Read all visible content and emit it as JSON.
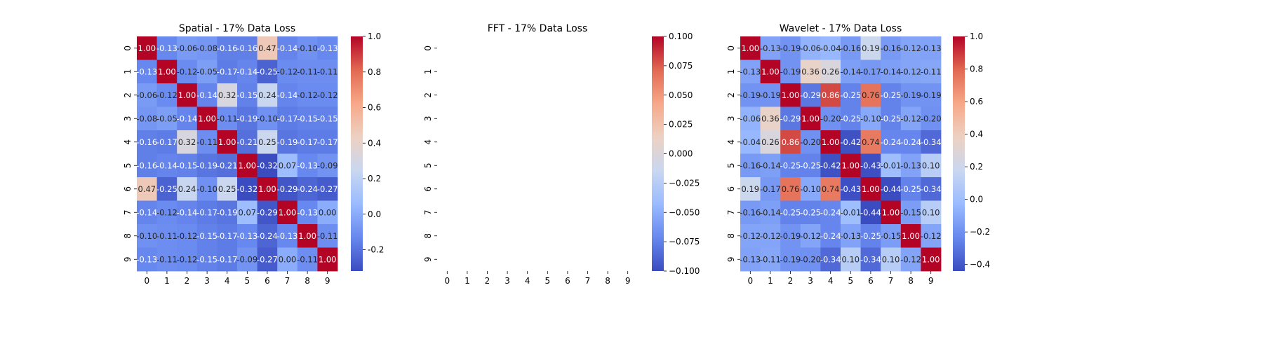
{
  "colormap": {
    "name": "coolwarm",
    "stops": [
      "#3b4cc0",
      "#6788ee",
      "#9abbff",
      "#c9d7f0",
      "#edd1c2",
      "#f7a889",
      "#e26952",
      "#b40426"
    ]
  },
  "chart_data": [
    {
      "type": "heatmap",
      "title": "Spatial - 17% Data Loss",
      "x_ticks": [
        "0",
        "1",
        "2",
        "3",
        "4",
        "5",
        "6",
        "7",
        "8",
        "9"
      ],
      "y_ticks": [
        "0",
        "1",
        "2",
        "3",
        "4",
        "5",
        "6",
        "7",
        "8",
        "9"
      ],
      "vmin": -0.32,
      "vmax": 1.0,
      "colorbar_ticks": [
        "-0.2",
        "0.0",
        "0.2",
        "0.4",
        "0.6",
        "0.8",
        "1.0"
      ],
      "annotated": true,
      "values": [
        [
          1.0,
          -0.13,
          -0.06,
          -0.08,
          -0.16,
          -0.16,
          0.47,
          -0.14,
          -0.1,
          -0.13
        ],
        [
          -0.13,
          1.0,
          -0.12,
          -0.05,
          -0.17,
          -0.14,
          -0.25,
          -0.12,
          -0.11,
          -0.11
        ],
        [
          -0.06,
          -0.12,
          1.0,
          -0.14,
          0.32,
          -0.15,
          0.24,
          -0.14,
          -0.12,
          -0.12
        ],
        [
          -0.08,
          -0.05,
          -0.14,
          1.0,
          -0.11,
          -0.19,
          -0.1,
          -0.17,
          -0.15,
          -0.15
        ],
        [
          -0.16,
          -0.17,
          0.32,
          -0.11,
          1.0,
          -0.21,
          0.25,
          -0.19,
          -0.17,
          -0.17
        ],
        [
          -0.16,
          -0.14,
          -0.15,
          -0.19,
          -0.21,
          1.0,
          -0.32,
          0.07,
          -0.13,
          -0.09
        ],
        [
          0.47,
          -0.25,
          0.24,
          -0.1,
          0.25,
          -0.32,
          1.0,
          -0.29,
          -0.24,
          -0.27
        ],
        [
          -0.14,
          -0.12,
          -0.14,
          -0.17,
          -0.19,
          0.07,
          -0.29,
          1.0,
          -0.13,
          -0.0
        ],
        [
          -0.1,
          -0.11,
          -0.12,
          -0.15,
          -0.17,
          -0.13,
          -0.24,
          -0.13,
          1.0,
          -0.11
        ],
        [
          -0.13,
          -0.11,
          -0.12,
          -0.15,
          -0.17,
          -0.09,
          -0.27,
          -0.0,
          -0.11,
          1.0
        ]
      ]
    },
    {
      "type": "heatmap",
      "title": "FFT - 17% Data Loss",
      "x_ticks": [
        "0",
        "1",
        "2",
        "3",
        "4",
        "5",
        "6",
        "7",
        "8",
        "9"
      ],
      "y_ticks": [
        "0",
        "1",
        "2",
        "3",
        "4",
        "5",
        "6",
        "7",
        "8",
        "9"
      ],
      "vmin": -0.1,
      "vmax": 0.1,
      "colorbar_ticks": [
        "−0.100",
        "−0.075",
        "−0.050",
        "−0.025",
        "0.000",
        "0.025",
        "0.050",
        "0.075",
        "0.100"
      ],
      "annotated": false,
      "values": null
    },
    {
      "type": "heatmap",
      "title": "Wavelet - 17% Data Loss",
      "x_ticks": [
        "0",
        "1",
        "2",
        "3",
        "4",
        "5",
        "6",
        "7",
        "8",
        "9"
      ],
      "y_ticks": [
        "0",
        "1",
        "2",
        "3",
        "4",
        "5",
        "6",
        "7",
        "8",
        "9"
      ],
      "vmin": -0.44,
      "vmax": 1.0,
      "colorbar_ticks": [
        "−0.4",
        "−0.2",
        "0.0",
        "0.2",
        "0.4",
        "0.6",
        "0.8",
        "1.0"
      ],
      "annotated": true,
      "values": [
        [
          1.0,
          -0.13,
          -0.19,
          -0.06,
          -0.04,
          -0.16,
          0.19,
          -0.16,
          -0.12,
          -0.13
        ],
        [
          -0.13,
          1.0,
          -0.19,
          0.36,
          0.26,
          -0.14,
          -0.17,
          -0.14,
          -0.12,
          -0.11
        ],
        [
          -0.19,
          -0.19,
          1.0,
          -0.29,
          0.86,
          -0.25,
          0.76,
          -0.25,
          -0.19,
          -0.19
        ],
        [
          -0.06,
          0.36,
          -0.29,
          1.0,
          -0.2,
          -0.25,
          -0.1,
          -0.25,
          -0.12,
          -0.2
        ],
        [
          -0.04,
          0.26,
          0.86,
          -0.2,
          1.0,
          -0.42,
          0.74,
          -0.24,
          -0.24,
          -0.34
        ],
        [
          -0.16,
          -0.14,
          -0.25,
          -0.25,
          -0.42,
          1.0,
          -0.43,
          -0.01,
          -0.13,
          0.1
        ],
        [
          0.19,
          -0.17,
          0.76,
          -0.1,
          0.74,
          -0.43,
          1.0,
          -0.44,
          -0.25,
          -0.34
        ],
        [
          -0.16,
          -0.14,
          -0.25,
          -0.25,
          -0.24,
          -0.01,
          -0.44,
          1.0,
          -0.15,
          0.1
        ],
        [
          -0.12,
          -0.12,
          -0.19,
          -0.12,
          -0.24,
          -0.13,
          -0.25,
          -0.15,
          1.0,
          -0.12
        ],
        [
          -0.13,
          -0.11,
          -0.19,
          -0.2,
          -0.34,
          0.1,
          -0.34,
          0.1,
          -0.12,
          1.0
        ]
      ]
    }
  ]
}
